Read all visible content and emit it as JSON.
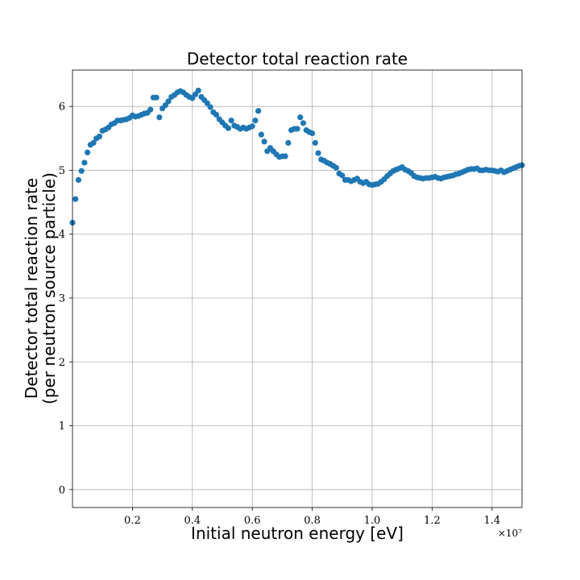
{
  "chart_data": {
    "type": "scatter",
    "title": "Detector total reaction rate",
    "xlabel": "Initial neutron energy [eV]",
    "ylabel_lines": [
      "Detector total reaction rate",
      "(per neutron source particle)"
    ],
    "x_offset_label": "×10⁷",
    "xlim": [
      0,
      15000000
    ],
    "ylim": [
      -0.28,
      6.57
    ],
    "xticks": [
      2000000,
      4000000,
      6000000,
      8000000,
      10000000,
      12000000,
      14000000
    ],
    "xtick_labels": [
      "0.2",
      "0.4",
      "0.6",
      "0.8",
      "1.0",
      "1.2",
      "1.4"
    ],
    "yticks": [
      0,
      1,
      2,
      3,
      4,
      5,
      6
    ],
    "ytick_labels": [
      "0",
      "1",
      "2",
      "3",
      "4",
      "5",
      "6"
    ],
    "grid": true,
    "marker_color": "#1f77b4",
    "series": [
      {
        "x": [
          0,
          100000,
          200000,
          300000,
          400000,
          500000,
          600000,
          700000,
          800000,
          900000,
          1000000,
          1100000,
          1200000,
          1300000,
          1400000,
          1500000,
          1600000,
          1700000,
          1800000,
          1900000,
          2000000,
          2100000,
          2200000,
          2300000,
          2400000,
          2500000,
          2600000,
          2700000,
          2800000,
          2900000,
          3000000,
          3100000,
          3200000,
          3300000,
          3400000,
          3500000,
          3600000,
          3700000,
          3800000,
          3900000,
          4000000,
          4100000,
          4200000,
          4300000,
          4400000,
          4500000,
          4600000,
          4700000,
          4800000,
          4900000,
          5000000,
          5100000,
          5200000,
          5300000,
          5400000,
          5500000,
          5600000,
          5700000,
          5800000,
          5900000,
          6000000,
          6100000,
          6200000,
          6300000,
          6400000,
          6500000,
          6600000,
          6700000,
          6800000,
          6900000,
          7000000,
          7100000,
          7200000,
          7300000,
          7400000,
          7500000,
          7600000,
          7700000,
          7800000,
          7900000,
          8000000,
          8100000,
          8200000,
          8300000,
          8400000,
          8500000,
          8600000,
          8700000,
          8800000,
          8900000,
          9000000,
          9100000,
          9200000,
          9300000,
          9400000,
          9500000,
          9600000,
          9700000,
          9800000,
          9900000,
          10000000,
          10100000,
          10200000,
          10300000,
          10400000,
          10500000,
          10600000,
          10700000,
          10800000,
          10900000,
          11000000,
          11100000,
          11200000,
          11300000,
          11400000,
          11500000,
          11600000,
          11700000,
          11800000,
          11900000,
          12000000,
          12100000,
          12200000,
          12300000,
          12400000,
          12500000,
          12600000,
          12700000,
          12800000,
          12900000,
          13000000,
          13100000,
          13200000,
          13300000,
          13400000,
          13500000,
          13600000,
          13700000,
          13800000,
          13900000,
          14000000,
          14100000,
          14200000,
          14300000,
          14400000,
          14500000,
          14600000,
          14700000,
          14800000,
          14900000,
          15000000
        ],
        "y": [
          4.18,
          4.55,
          4.85,
          4.99,
          5.12,
          5.28,
          5.4,
          5.43,
          5.5,
          5.53,
          5.62,
          5.64,
          5.67,
          5.72,
          5.74,
          5.78,
          5.78,
          5.79,
          5.8,
          5.82,
          5.86,
          5.84,
          5.85,
          5.87,
          5.89,
          5.9,
          5.95,
          6.14,
          6.14,
          5.83,
          5.97,
          6.02,
          6.08,
          6.15,
          6.18,
          6.22,
          6.24,
          6.22,
          6.18,
          6.15,
          6.13,
          6.19,
          6.25,
          6.15,
          6.1,
          6.05,
          5.99,
          5.91,
          5.87,
          5.8,
          5.75,
          5.7,
          5.66,
          5.78,
          5.7,
          5.68,
          5.65,
          5.67,
          5.65,
          5.67,
          5.69,
          5.78,
          5.93,
          5.56,
          5.45,
          5.3,
          5.35,
          5.3,
          5.25,
          5.21,
          5.22,
          5.22,
          5.43,
          5.63,
          5.65,
          5.65,
          5.83,
          5.74,
          5.63,
          5.6,
          5.58,
          5.43,
          5.27,
          5.17,
          5.15,
          5.12,
          5.1,
          5.07,
          5.04,
          4.95,
          4.92,
          4.85,
          4.85,
          4.83,
          4.85,
          4.87,
          4.82,
          4.8,
          4.82,
          4.78,
          4.77,
          4.78,
          4.79,
          4.82,
          4.86,
          4.91,
          4.95,
          4.99,
          5.01,
          5.03,
          5.05,
          5.01,
          4.99,
          4.96,
          4.91,
          4.89,
          4.88,
          4.87,
          4.88,
          4.88,
          4.89,
          4.9,
          4.88,
          4.87,
          4.89,
          4.9,
          4.91,
          4.92,
          4.94,
          4.95,
          4.97,
          4.99,
          5.01,
          5.02,
          5.02,
          5.03,
          5.0,
          5.0,
          5.01,
          5.0,
          5.0,
          4.99,
          4.98,
          5.0,
          4.97,
          4.99,
          5.01,
          5.03,
          5.05,
          5.07,
          5.08
        ]
      }
    ]
  }
}
